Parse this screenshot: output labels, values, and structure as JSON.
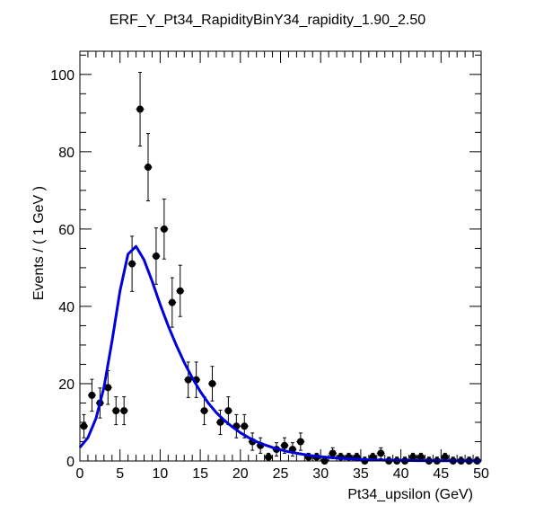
{
  "chart_data": {
    "type": "scatter",
    "title": "ERF_Y_Pt34_RapidityBinY34_rapidity_1.90_2.50",
    "xlabel": "Pt34_upsilon (GeV)",
    "ylabel": "Events / ( 1 GeV )",
    "xlim": [
      0,
      50
    ],
    "ylim": [
      0,
      106
    ],
    "x_ticks": [
      0,
      5,
      10,
      15,
      20,
      25,
      30,
      35,
      40,
      45,
      50
    ],
    "y_ticks": [
      0,
      20,
      40,
      60,
      80,
      100
    ],
    "grid": false,
    "colors": {
      "data": "#000000",
      "fit": "#0000dd"
    },
    "series": [
      {
        "kind": "data-points-with-errors",
        "x": [
          0.5,
          1.5,
          2.5,
          3.5,
          4.5,
          5.5,
          6.5,
          7.5,
          8.5,
          9.5,
          10.5,
          11.5,
          12.5,
          13.5,
          14.5,
          15.5,
          16.5,
          17.5,
          18.5,
          19.5,
          20.5,
          21.5,
          22.5,
          23.5,
          24.5,
          25.5,
          26.5,
          27.5,
          28.5,
          29.5,
          30.5,
          31.5,
          32.5,
          33.5,
          34.5,
          35.5,
          36.5,
          37.5,
          38.5,
          39.5,
          40.5,
          41.5,
          42.5,
          43.5,
          44.5,
          45.5,
          46.5,
          47.5,
          48.5,
          49.5
        ],
        "y": [
          9,
          17,
          15,
          19,
          13,
          13,
          51,
          91,
          76,
          53,
          60,
          41,
          44,
          21,
          21,
          13,
          20,
          10,
          13,
          9,
          9,
          5,
          4,
          1,
          3,
          4,
          3,
          5,
          1,
          1,
          0,
          2,
          1,
          1,
          1,
          0,
          1,
          2,
          0,
          0,
          0,
          1,
          1,
          0,
          0,
          1,
          0,
          0,
          0,
          0
        ]
      },
      {
        "kind": "fit-curve",
        "x": [
          0,
          1,
          2,
          3,
          4,
          5,
          6,
          7,
          8,
          9,
          10,
          11,
          12,
          13,
          14,
          15,
          16,
          17,
          18,
          19,
          20,
          21,
          22,
          23,
          24,
          25,
          26,
          27,
          28,
          29,
          30,
          32,
          34,
          36,
          38,
          40,
          42,
          44,
          46,
          48,
          50
        ],
        "y": [
          3.5,
          6,
          11,
          19,
          31,
          44,
          53.5,
          55.5,
          52,
          46.5,
          40.5,
          35,
          30,
          25.5,
          21.5,
          18,
          15,
          12.5,
          10.5,
          8.8,
          7.3,
          6.1,
          5.0,
          4.2,
          3.5,
          2.9,
          2.4,
          2.0,
          1.65,
          1.35,
          1.1,
          0.75,
          0.5,
          0.33,
          0.22,
          0.15,
          0.1,
          0.07,
          0.05,
          0.03,
          0.02
        ]
      }
    ]
  }
}
